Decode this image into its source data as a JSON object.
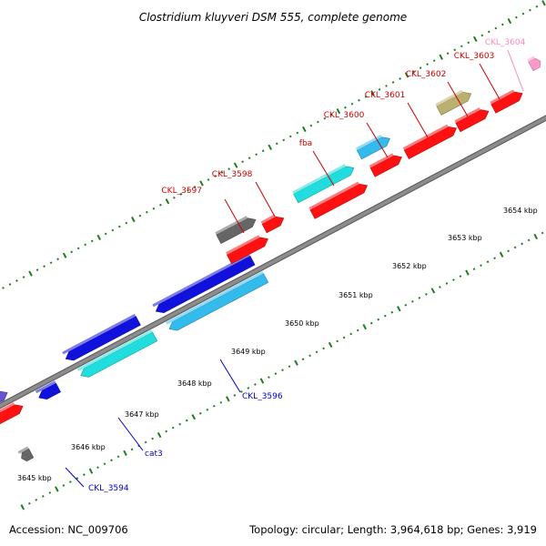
{
  "title": "Clostridium kluyveri DSM 555, complete genome",
  "footer": {
    "accession": "Accession: NC_009706",
    "summary": "Topology: circular; Length: 3,964,618 bp; Genes: 3,919"
  },
  "colors": {
    "backbone": "#8c8c8c",
    "backbone_edge": "#555555",
    "tick": "#1e7d1e",
    "label_red": "#cc0000",
    "label_blue": "#0000cc",
    "label_pink": "#ff88bb",
    "red": "#ff1111",
    "blue": "#1111dd",
    "cyan": "#22dddd",
    "skyblue": "#33bbee",
    "slate": "#6655cc",
    "olive": "#bbb070",
    "gray": "#666666",
    "pink": "#ff99cc"
  },
  "kbp_ticks": [
    "3645 kbp",
    "3646 kbp",
    "3647 kbp",
    "3648 kbp",
    "3649 kbp",
    "3650 kbp",
    "3651 kbp",
    "3652 kbp",
    "3653 kbp",
    "3654 kbp"
  ],
  "gene_labels": [
    {
      "name": "ckl-3594-label",
      "text": "CKL_3594",
      "color": "label_blue"
    },
    {
      "name": "cat3-label",
      "text": "cat3",
      "color": "label_blue"
    },
    {
      "name": "ckl-3596-label",
      "text": "CKL_3596",
      "color": "label_blue"
    },
    {
      "name": "ckl-3597-label",
      "text": "CKL_3597",
      "color": "label_red"
    },
    {
      "name": "ckl-3598-label",
      "text": "CKL_3598",
      "color": "label_red"
    },
    {
      "name": "fba-label",
      "text": "fba",
      "color": "label_red"
    },
    {
      "name": "ckl-3600-label",
      "text": "CKL_3600",
      "color": "label_red"
    },
    {
      "name": "ckl-3601-label",
      "text": "CKL_3601",
      "color": "label_red"
    },
    {
      "name": "ckl-3602-label",
      "text": "CKL_3602",
      "color": "label_red"
    },
    {
      "name": "ckl-3603-label",
      "text": "CKL_3603",
      "color": "label_red"
    },
    {
      "name": "ckl-3604-label",
      "text": "CKL_3604",
      "color": "label_pink"
    }
  ],
  "genes": [
    {
      "name": "gene-slate-edge",
      "color": "slate",
      "strand": "plus"
    },
    {
      "name": "gene-red-edge",
      "color": "red",
      "strand": "plus"
    },
    {
      "name": "gene-blue-small",
      "color": "blue",
      "strand": "minus"
    },
    {
      "name": "gene-gray-edge",
      "color": "gray",
      "strand": "minus"
    },
    {
      "name": "gene-ckl-3594",
      "color": "blue",
      "strand": "minus"
    },
    {
      "name": "gene-cat3",
      "color": "cyan",
      "strand": "minus"
    },
    {
      "name": "gene-ckl-3596-outer",
      "color": "blue",
      "strand": "minus"
    },
    {
      "name": "gene-ckl-3596",
      "color": "skyblue",
      "strand": "minus"
    },
    {
      "name": "gene-ckl-3597",
      "color": "gray",
      "strand": "plus"
    },
    {
      "name": "gene-ckl-3597-red",
      "color": "red",
      "strand": "plus"
    },
    {
      "name": "gene-ckl-3598",
      "color": "red",
      "strand": "plus"
    },
    {
      "name": "gene-fba-red",
      "color": "red",
      "strand": "plus"
    },
    {
      "name": "gene-fba",
      "color": "cyan",
      "strand": "plus"
    },
    {
      "name": "gene-ckl-3600-red",
      "color": "red",
      "strand": "plus"
    },
    {
      "name": "gene-ckl-3600",
      "color": "skyblue",
      "strand": "plus"
    },
    {
      "name": "gene-ckl-3601",
      "color": "red",
      "strand": "plus"
    },
    {
      "name": "gene-ckl-3602",
      "color": "red",
      "strand": "plus"
    },
    {
      "name": "gene-ckl-3603-olive",
      "color": "olive",
      "strand": "plus"
    },
    {
      "name": "gene-ckl-3603",
      "color": "red",
      "strand": "plus"
    },
    {
      "name": "gene-ckl-3604",
      "color": "pink",
      "strand": "plus"
    }
  ]
}
